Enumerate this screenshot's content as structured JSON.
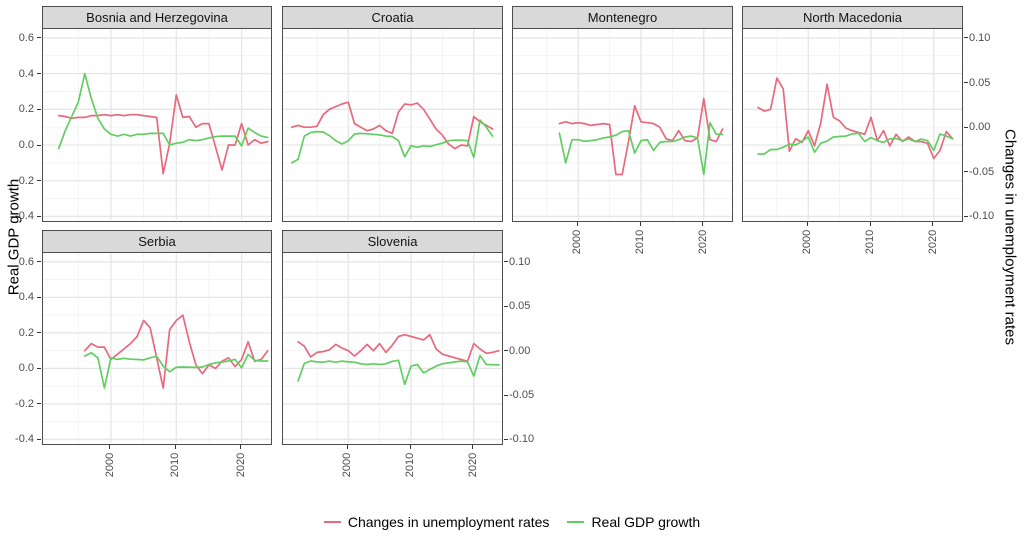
{
  "axes": {
    "left_title": "Real GDP growth",
    "right_title": "Changes in unemployment rates",
    "left_ticks": [
      "0.6",
      "0.4",
      "0.2",
      "0.0",
      "-0.2",
      "-0.4"
    ],
    "left_tick_values": [
      0.6,
      0.4,
      0.2,
      0.0,
      -0.2,
      -0.4
    ],
    "right_ticks": [
      "0.10",
      "0.05",
      "0.00",
      "-0.05",
      "-0.10"
    ],
    "right_tick_values": [
      0.1,
      0.05,
      0.0,
      -0.05,
      -0.1
    ],
    "x_ticks": [
      "2000",
      "2010",
      "2020"
    ],
    "x_tick_values": [
      2000,
      2010,
      2020
    ],
    "xlim": [
      1989.6,
      2024.5
    ],
    "left_ylim": [
      -0.42,
      0.65
    ],
    "right_ylim": [
      -0.104,
      0.11
    ],
    "x_minor": [
      1995,
      2005,
      2015
    ],
    "left_minor": [
      0.5,
      0.3,
      0.1,
      -0.1,
      -0.3
    ],
    "grid": true,
    "legend_position": "bottom"
  },
  "colors": {
    "unemployment": "#e8697d",
    "gdp": "#62ce62",
    "strip_bg": "#d9d9d9",
    "panel_border": "#4d4d4d",
    "grid_major": "#e6e6e6",
    "grid_minor": "#f3f3f3",
    "tick_text": "#4d4d4d"
  },
  "legend": {
    "items": [
      {
        "label": "Changes in unemployment rates",
        "color": "#e8697d"
      },
      {
        "label": "Real GDP growth",
        "color": "#62ce62"
      }
    ]
  },
  "chart_data": [
    {
      "type": "line",
      "title": "Bosnia and Herzegovina",
      "x": [
        1992,
        1993,
        1994,
        1995,
        1996,
        1997,
        1998,
        1999,
        2000,
        2001,
        2002,
        2003,
        2004,
        2005,
        2006,
        2007,
        2008,
        2009,
        2010,
        2011,
        2012,
        2013,
        2014,
        2015,
        2016,
        2017,
        2018,
        2019,
        2020,
        2021,
        2022,
        2023,
        2024
      ],
      "series": [
        {
          "name": "Changes in unemployment rates",
          "axis": "right",
          "values": [
            0.013,
            0.012,
            0.01,
            0.011,
            0.011,
            0.013,
            0.013,
            0.014,
            0.013,
            0.014,
            0.013,
            0.014,
            0.014,
            0.013,
            0.012,
            0.011,
            -0.052,
            -0.018,
            0.036,
            0.011,
            0.012,
            0.0,
            0.004,
            0.004,
            -0.022,
            -0.048,
            -0.02,
            -0.02,
            0.004,
            -0.02,
            -0.014,
            -0.018,
            -0.016
          ]
        },
        {
          "name": "Real GDP growth",
          "axis": "left",
          "values": [
            -0.02,
            0.08,
            0.16,
            0.24,
            0.4,
            0.26,
            0.15,
            0.09,
            0.06,
            0.05,
            0.06,
            0.05,
            0.06,
            0.06,
            0.065,
            0.065,
            0.065,
            0.0,
            0.01,
            0.015,
            0.03,
            0.025,
            0.03,
            0.04,
            0.047,
            0.05,
            0.05,
            0.05,
            -0.005,
            0.095,
            0.07,
            0.05,
            0.043
          ]
        }
      ]
    },
    {
      "type": "line",
      "title": "Croatia",
      "x": [
        1991,
        1992,
        1993,
        1994,
        1995,
        1996,
        1997,
        1998,
        1999,
        2000,
        2001,
        2002,
        2003,
        2004,
        2005,
        2006,
        2007,
        2008,
        2009,
        2010,
        2011,
        2012,
        2013,
        2014,
        2015,
        2016,
        2017,
        2018,
        2019,
        2020,
        2021,
        2022,
        2023
      ],
      "series": [
        {
          "name": "Changes in unemployment rates",
          "axis": "right",
          "values": [
            0.0,
            0.002,
            0.0,
            0.0,
            0.001,
            0.014,
            0.02,
            0.023,
            0.026,
            0.028,
            0.004,
            0.0,
            -0.004,
            -0.002,
            0.002,
            -0.004,
            -0.007,
            0.017,
            0.026,
            0.025,
            0.027,
            0.02,
            0.009,
            -0.002,
            -0.009,
            -0.019,
            -0.024,
            -0.02,
            -0.021,
            0.012,
            0.006,
            0.002,
            -0.002
          ]
        },
        {
          "name": "Real GDP growth",
          "axis": "left",
          "values": [
            -0.1,
            -0.08,
            0.05,
            0.07,
            0.075,
            0.073,
            0.053,
            0.024,
            0.006,
            0.024,
            0.062,
            0.065,
            0.063,
            0.06,
            0.057,
            0.05,
            0.048,
            0.024,
            -0.066,
            -0.004,
            -0.013,
            -0.004,
            -0.009,
            0.002,
            0.01,
            0.024,
            0.027,
            0.027,
            0.024,
            -0.07,
            0.14,
            0.1,
            0.05
          ]
        }
      ]
    },
    {
      "type": "line",
      "title": "Montenegro",
      "x": [
        1997,
        1998,
        1999,
        2000,
        2001,
        2002,
        2003,
        2004,
        2005,
        2006,
        2007,
        2008,
        2009,
        2010,
        2011,
        2012,
        2013,
        2014,
        2015,
        2016,
        2017,
        2018,
        2019,
        2020,
        2021,
        2022,
        2023
      ],
      "series": [
        {
          "name": "Changes in unemployment rates",
          "axis": "right",
          "values": [
            0.004,
            0.006,
            0.004,
            0.005,
            0.004,
            0.002,
            0.003,
            0.004,
            0.003,
            -0.053,
            -0.053,
            -0.016,
            0.024,
            0.006,
            0.005,
            0.004,
            0.0,
            -0.013,
            -0.015,
            -0.004,
            -0.015,
            -0.016,
            -0.012,
            0.032,
            -0.014,
            -0.016,
            -0.002
          ]
        },
        {
          "name": "Real GDP growth",
          "axis": "left",
          "values": [
            0.066,
            -0.1,
            0.03,
            0.03,
            0.021,
            0.025,
            0.03,
            0.04,
            0.045,
            0.055,
            0.075,
            0.08,
            -0.045,
            0.025,
            0.03,
            -0.03,
            0.015,
            0.02,
            0.02,
            0.03,
            0.045,
            0.05,
            0.04,
            -0.164,
            0.124,
            0.06,
            0.06
          ]
        }
      ]
    },
    {
      "type": "line",
      "title": "North Macedonia",
      "x": [
        1992,
        1993,
        1994,
        1995,
        1996,
        1997,
        1998,
        1999,
        2000,
        2001,
        2002,
        2003,
        2004,
        2005,
        2006,
        2007,
        2008,
        2009,
        2010,
        2011,
        2012,
        2013,
        2014,
        2015,
        2016,
        2017,
        2018,
        2019,
        2020,
        2021,
        2022,
        2023
      ],
      "series": [
        {
          "name": "Changes in unemployment rates",
          "axis": "right",
          "values": [
            0.022,
            0.018,
            0.02,
            0.055,
            0.043,
            -0.027,
            -0.013,
            -0.017,
            -0.004,
            -0.021,
            0.005,
            0.048,
            0.011,
            0.007,
            -0.001,
            -0.004,
            -0.006,
            -0.008,
            0.011,
            -0.015,
            -0.004,
            -0.021,
            -0.008,
            -0.016,
            -0.011,
            -0.016,
            -0.016,
            -0.018,
            -0.035,
            -0.026,
            -0.005,
            -0.013
          ]
        },
        {
          "name": "Real GDP growth",
          "axis": "left",
          "values": [
            -0.05,
            -0.05,
            -0.025,
            -0.025,
            -0.012,
            0.005,
            0.0,
            0.022,
            0.045,
            -0.04,
            0.01,
            0.022,
            0.045,
            0.048,
            0.05,
            0.062,
            0.066,
            0.02,
            0.042,
            0.024,
            0.015,
            0.035,
            0.036,
            0.025,
            0.033,
            0.02,
            0.033,
            0.025,
            -0.03,
            0.062,
            0.05,
            0.035
          ]
        }
      ]
    },
    {
      "type": "line",
      "title": "Serbia",
      "x": [
        1996,
        1997,
        1998,
        1999,
        2000,
        2001,
        2002,
        2003,
        2004,
        2005,
        2006,
        2007,
        2008,
        2009,
        2010,
        2011,
        2012,
        2013,
        2014,
        2015,
        2016,
        2017,
        2018,
        2019,
        2020,
        2021,
        2022,
        2023,
        2024
      ],
      "series": [
        {
          "name": "Changes in unemployment rates",
          "axis": "right",
          "values": [
            0.0,
            0.008,
            0.004,
            0.004,
            -0.01,
            -0.004,
            0.002,
            0.008,
            0.016,
            0.034,
            0.026,
            -0.008,
            -0.042,
            0.024,
            0.034,
            0.04,
            0.01,
            -0.016,
            -0.026,
            -0.016,
            -0.02,
            -0.012,
            -0.008,
            -0.018,
            -0.01,
            0.01,
            -0.012,
            -0.01,
            0.0
          ]
        },
        {
          "name": "Real GDP growth",
          "axis": "left",
          "values": [
            0.07,
            0.088,
            0.06,
            -0.11,
            0.06,
            0.051,
            0.057,
            0.052,
            0.05,
            0.048,
            0.06,
            0.068,
            0.013,
            -0.019,
            0.007,
            0.008,
            0.007,
            0.006,
            0.008,
            0.022,
            0.031,
            0.036,
            0.042,
            0.051,
            0.003,
            0.079,
            0.045,
            0.042,
            0.042
          ]
        }
      ]
    },
    {
      "type": "line",
      "title": "Slovenia",
      "x": [
        1992,
        1993,
        1994,
        1995,
        1996,
        1997,
        1998,
        1999,
        2000,
        2001,
        2002,
        2003,
        2004,
        2005,
        2006,
        2007,
        2008,
        2009,
        2010,
        2011,
        2012,
        2013,
        2014,
        2015,
        2016,
        2017,
        2018,
        2019,
        2020,
        2021,
        2022,
        2023,
        2024
      ],
      "series": [
        {
          "name": "Changes in unemployment rates",
          "axis": "right",
          "values": [
            0.01,
            0.005,
            -0.007,
            -0.002,
            -0.001,
            0.001,
            0.007,
            0.003,
            0.0,
            -0.006,
            0.0,
            0.007,
            0.0,
            0.008,
            -0.002,
            0.006,
            0.016,
            0.018,
            0.016,
            0.014,
            0.012,
            0.018,
            0.002,
            -0.004,
            -0.006,
            -0.008,
            -0.01,
            -0.012,
            0.008,
            0.002,
            -0.003,
            -0.002,
            0.0
          ]
        },
        {
          "name": "Real GDP growth",
          "axis": "left",
          "values": [
            -0.07,
            0.028,
            0.042,
            0.037,
            0.035,
            0.041,
            0.035,
            0.041,
            0.037,
            0.035,
            0.026,
            0.022,
            0.026,
            0.022,
            0.026,
            0.04,
            0.046,
            -0.09,
            0.013,
            0.022,
            -0.025,
            -0.006,
            0.013,
            0.026,
            0.031,
            0.037,
            0.041,
            0.037,
            -0.043,
            0.073,
            0.022,
            0.021,
            0.02
          ]
        }
      ]
    }
  ]
}
